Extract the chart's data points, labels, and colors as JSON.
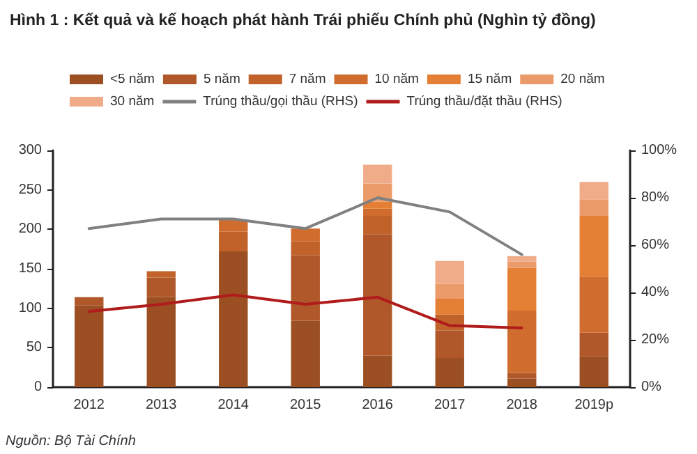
{
  "chart_data": {
    "type": "bar",
    "title": "Hình 1 : Kết quả và kế hoạch phát hành Trái phiếu Chính phủ (Nghìn tỷ đồng)",
    "annotations": [
      "Nguồn: Bộ Tài Chính"
    ],
    "categories": [
      "2012",
      "2013",
      "2014",
      "2015",
      "2016",
      "2017",
      "2018",
      "2019p"
    ],
    "stacked": true,
    "legend": "top",
    "grid": false,
    "ylim": [
      0,
      300
    ],
    "yticks": [
      0,
      50,
      100,
      150,
      200,
      250,
      300
    ],
    "y2lim": [
      0,
      100
    ],
    "y2ticks": [
      {
        "value": 0,
        "label": "0%"
      },
      {
        "value": 20,
        "label": "20%"
      },
      {
        "value": 40,
        "label": "40%"
      },
      {
        "value": 60,
        "label": "60%"
      },
      {
        "value": 80,
        "label": "80%"
      },
      {
        "value": 100,
        "label": "100%"
      }
    ],
    "series": [
      {
        "name": "<5 năm",
        "color": "#9c4f22",
        "values": [
          104,
          114,
          172,
          84,
          40,
          37,
          11,
          39
        ]
      },
      {
        "name": "5 năm",
        "color": "#b0582a",
        "values": [
          10,
          25,
          0,
          83,
          154,
          35,
          7,
          30
        ]
      },
      {
        "name": "7 năm",
        "color": "#c0622a",
        "values": [
          0,
          8,
          25,
          18,
          23,
          20,
          0,
          0
        ]
      },
      {
        "name": "10 năm",
        "color": "#d06c2e",
        "values": [
          0,
          0,
          15,
          16,
          9,
          0,
          79,
          71
        ]
      },
      {
        "name": "15 năm",
        "color": "#e57f35",
        "values": [
          0,
          0,
          0,
          0,
          9,
          20,
          54,
          77
        ]
      },
      {
        "name": "20 năm",
        "color": "#eb9a6a",
        "values": [
          0,
          0,
          0,
          0,
          23,
          19,
          8,
          21
        ]
      },
      {
        "name": "30 năm",
        "color": "#f0ac88",
        "values": [
          0,
          0,
          0,
          0,
          24,
          29,
          7,
          22
        ]
      },
      {
        "name": "Trúng thầu/gọi thầu (RHS)",
        "type": "line",
        "axis": "y2",
        "color": "#808080",
        "values": [
          67,
          71,
          71,
          67,
          80,
          74,
          56,
          null
        ]
      },
      {
        "name": "Trúng thầu/đặt thầu (RHS)",
        "type": "line",
        "axis": "y2",
        "color": "#b01c1c",
        "values": [
          32,
          35,
          39,
          35,
          38,
          26,
          25,
          null
        ]
      }
    ]
  }
}
